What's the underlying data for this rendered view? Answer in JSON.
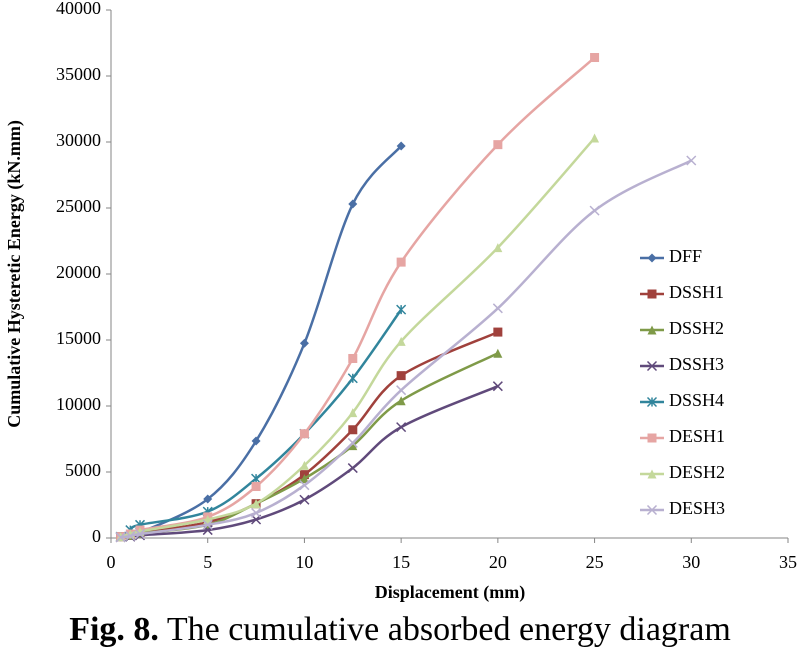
{
  "chart_data": {
    "type": "line",
    "y_label": "Cumulative Hysteretic Energy (kN.mm)",
    "x_label": "Displacement (mm)",
    "caption_label": "Fig. 8.",
    "caption": "The cumulative absorbed energy diagram",
    "xlim": [
      0,
      35
    ],
    "xticks": [
      0,
      5,
      10,
      15,
      20,
      25,
      30,
      35
    ],
    "ylim": [
      0,
      40000
    ],
    "yticks": [
      0,
      5000,
      10000,
      15000,
      20000,
      25000,
      30000,
      35000,
      40000
    ],
    "grid": false,
    "legend": "right",
    "series": [
      {
        "name": "DFF",
        "color": "#4a6fa5",
        "marker": "diamond",
        "x": [
          0.5,
          1,
          1.5,
          5,
          7.5,
          10,
          12.5,
          15
        ],
        "values": [
          100,
          200,
          400,
          2950,
          7350,
          14750,
          25300,
          29700
        ]
      },
      {
        "name": "DSSH1",
        "color": "#a0413c",
        "marker": "square",
        "x": [
          0.5,
          1,
          1.5,
          5,
          7.5,
          10,
          12.5,
          15,
          20
        ],
        "values": [
          100,
          200,
          400,
          1200,
          2600,
          4800,
          8200,
          12300,
          15600
        ]
      },
      {
        "name": "DSSH2",
        "color": "#7f9a48",
        "marker": "triangle",
        "x": [
          0.5,
          1,
          1.5,
          5,
          7.5,
          10,
          12.5,
          15,
          20
        ],
        "values": [
          100,
          200,
          350,
          1000,
          2600,
          4500,
          7000,
          10400,
          14000
        ]
      },
      {
        "name": "DSSH3",
        "color": "#604a7b",
        "marker": "cross",
        "x": [
          0.5,
          1,
          1.5,
          5,
          7.5,
          10,
          12.5,
          15,
          20
        ],
        "values": [
          50,
          100,
          200,
          600,
          1400,
          2900,
          5300,
          8400,
          11500
        ]
      },
      {
        "name": "DSSH4",
        "color": "#31859c",
        "marker": "asterisk",
        "x": [
          0.5,
          1,
          1.5,
          5,
          7.5,
          10,
          12.5,
          15
        ],
        "values": [
          100,
          600,
          1000,
          2000,
          4500,
          7900,
          12100,
          17300
        ]
      },
      {
        "name": "DESH1",
        "color": "#e6a5a3",
        "marker": "square",
        "x": [
          0.5,
          1,
          1.5,
          5,
          7.5,
          10,
          12.5,
          15,
          20,
          25
        ],
        "values": [
          100,
          300,
          600,
          1600,
          3900,
          7900,
          13600,
          20900,
          29800,
          36400
        ]
      },
      {
        "name": "DESH2",
        "color": "#c4d89b",
        "marker": "triangle",
        "x": [
          0.5,
          1,
          1.5,
          5,
          7.5,
          10,
          12.5,
          15,
          20,
          25
        ],
        "values": [
          100,
          300,
          500,
          1400,
          2600,
          5500,
          9500,
          14900,
          22000,
          30300
        ]
      },
      {
        "name": "DESH3",
        "color": "#b8b0d0",
        "marker": "cross",
        "x": [
          0.5,
          1,
          1.5,
          5,
          7.5,
          10,
          12.5,
          15,
          20,
          25,
          30
        ],
        "values": [
          50,
          150,
          300,
          1000,
          1900,
          4000,
          7200,
          11200,
          17400,
          24800,
          28600
        ]
      }
    ]
  }
}
